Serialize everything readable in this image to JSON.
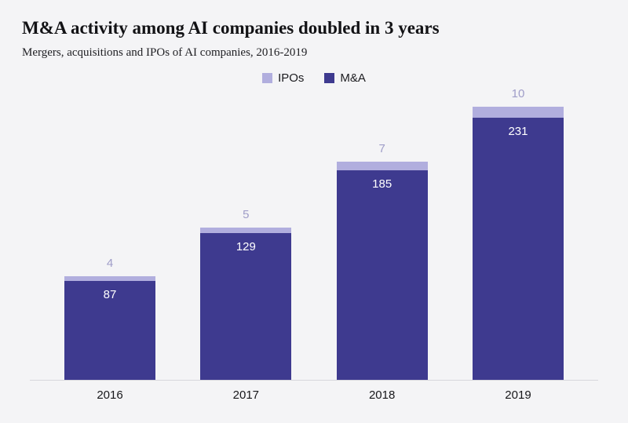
{
  "header": {
    "title": "M&A activity among AI companies doubled in 3 years",
    "subtitle": "Mergers, acquisitions and IPOs of AI companies, 2016-2019"
  },
  "legend": [
    {
      "label": "IPOs",
      "color": "#b1aede"
    },
    {
      "label": "M&A",
      "color": "#3e3a8f"
    }
  ],
  "chart_data": {
    "type": "bar",
    "stacked": true,
    "title": "M&A activity among AI companies doubled in 3 years",
    "subtitle": "Mergers, acquisitions and IPOs of AI companies, 2016-2019",
    "categories": [
      "2016",
      "2017",
      "2018",
      "2019"
    ],
    "series": [
      {
        "name": "M&A",
        "color": "#3e3a8f",
        "values": [
          87,
          129,
          185,
          231
        ]
      },
      {
        "name": "IPOs",
        "color": "#b1aede",
        "values": [
          4,
          5,
          7,
          10
        ]
      }
    ],
    "xlabel": "",
    "ylabel": "",
    "ylim": [
      0,
      245
    ],
    "grid": false,
    "legend_position": "top-center",
    "value_label_colors": {
      "ipo": "#9f9dc8",
      "mna": "#ffffff"
    },
    "background": "#f4f4f6"
  }
}
